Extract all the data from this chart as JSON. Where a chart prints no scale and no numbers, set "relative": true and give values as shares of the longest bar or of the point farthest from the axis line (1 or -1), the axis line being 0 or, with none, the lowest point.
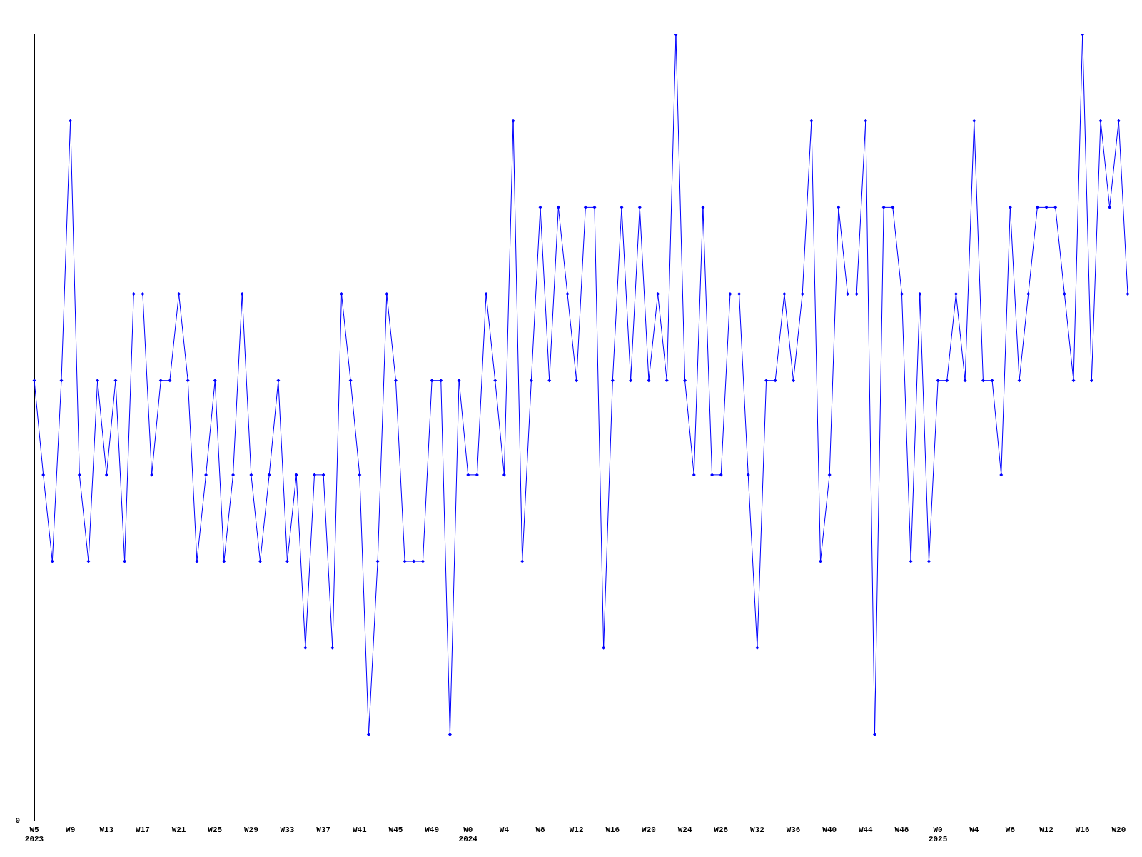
{
  "chart_data": {
    "type": "line",
    "relative": true,
    "color": "#0000ff",
    "marker": "diamond",
    "line_style": "solid",
    "grid": false,
    "legend": false,
    "annotations": [
      "0"
    ],
    "categories": [
      "W5\n2023",
      null,
      null,
      null,
      "W9",
      null,
      null,
      null,
      "W13",
      null,
      null,
      null,
      "W17",
      null,
      null,
      null,
      "W21",
      null,
      null,
      null,
      "W25",
      null,
      null,
      null,
      "W29",
      null,
      null,
      null,
      "W33",
      null,
      null,
      null,
      "W37",
      null,
      null,
      null,
      "W41",
      null,
      null,
      null,
      "W45",
      null,
      null,
      null,
      "W49",
      null,
      null,
      null,
      "W0\n2024",
      null,
      null,
      null,
      "W4",
      null,
      null,
      null,
      "W8",
      null,
      null,
      null,
      "W12",
      null,
      null,
      null,
      "W16",
      null,
      null,
      null,
      "W20",
      null,
      null,
      null,
      "W24",
      null,
      null,
      null,
      "W28",
      null,
      null,
      null,
      "W32",
      null,
      null,
      null,
      "W36",
      null,
      null,
      null,
      "W40",
      null,
      null,
      null,
      "W44",
      null,
      null,
      null,
      "W48",
      null,
      null,
      null,
      "W0\n2025",
      null,
      null,
      null,
      "W4",
      null,
      null,
      null,
      "W8",
      null,
      null,
      null,
      "W12",
      null,
      null,
      null,
      "W16",
      null,
      null,
      null,
      "W20",
      null
    ],
    "values": [
      0.56,
      0.44,
      0.33,
      0.56,
      0.89,
      0.44,
      0.33,
      0.56,
      0.44,
      0.56,
      0.33,
      0.67,
      0.67,
      0.44,
      0.56,
      0.56,
      0.67,
      0.56,
      0.33,
      0.44,
      0.56,
      0.33,
      0.44,
      0.67,
      0.44,
      0.33,
      0.44,
      0.56,
      0.33,
      0.44,
      0.22,
      0.44,
      0.44,
      0.22,
      0.67,
      0.56,
      0.44,
      0.11,
      0.33,
      0.67,
      0.56,
      0.33,
      0.33,
      0.33,
      0.56,
      0.56,
      0.11,
      0.56,
      0.44,
      0.44,
      0.67,
      0.56,
      0.44,
      0.89,
      0.33,
      0.56,
      0.78,
      0.56,
      0.78,
      0.67,
      0.56,
      0.78,
      0.78,
      0.22,
      0.56,
      0.78,
      0.56,
      0.78,
      0.56,
      0.67,
      0.56,
      1,
      0.56,
      0.44,
      0.78,
      0.44,
      0.44,
      0.67,
      0.67,
      0.44,
      0.22,
      0.56,
      0.56,
      0.67,
      0.56,
      0.67,
      0.89,
      0.33,
      0.44,
      0.78,
      0.67,
      0.67,
      0.89,
      0.11,
      0.78,
      0.78,
      0.67,
      0.33,
      0.67,
      0.33,
      0.56,
      0.56,
      0.67,
      0.56,
      0.89,
      0.56,
      0.56,
      0.44,
      0.78,
      0.56,
      0.67,
      0.78,
      0.78,
      0.78,
      0.67,
      0.56,
      1,
      0.56,
      0.89,
      0.78,
      0.89,
      0.67
    ]
  }
}
